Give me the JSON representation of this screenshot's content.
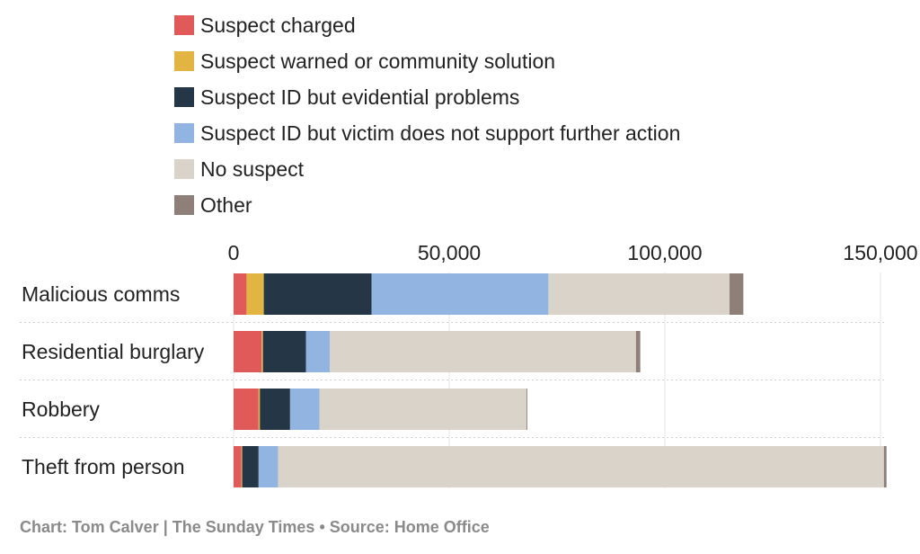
{
  "chart_data": {
    "type": "bar",
    "orientation": "horizontal",
    "stacked": true,
    "categories": [
      "Malicious comms",
      "Residential burglary",
      "Robbery",
      "Theft from person"
    ],
    "series": [
      {
        "name": "Suspect charged",
        "color": "#e05a5a",
        "values": [
          3000,
          6500,
          5800,
          1800
        ]
      },
      {
        "name": "Suspect warned or community solution",
        "color": "#e2b442",
        "values": [
          4000,
          300,
          300,
          200
        ]
      },
      {
        "name": "Suspect ID but evidential problems",
        "color": "#253746",
        "values": [
          25000,
          10000,
          7000,
          3800
        ]
      },
      {
        "name": "Suspect ID but victim does not support further action",
        "color": "#92b4e0",
        "values": [
          41000,
          5500,
          6800,
          4500
        ]
      },
      {
        "name": "No suspect",
        "color": "#d9d3ca",
        "values": [
          42000,
          71000,
          48000,
          140500
        ]
      },
      {
        "name": "Other",
        "color": "#8e7f79",
        "values": [
          3200,
          1000,
          200,
          600
        ]
      }
    ],
    "x_ticks": [
      0,
      50000,
      100000,
      150000
    ],
    "x_tick_labels": [
      "0",
      "50,000",
      "100,000",
      "150,000"
    ],
    "xlim": [
      0,
      150000
    ],
    "grid": true,
    "legend_position": "top-left"
  },
  "footer": {
    "credit": "Chart: Tom Calver | The Sunday Times • Source: Home Office"
  }
}
